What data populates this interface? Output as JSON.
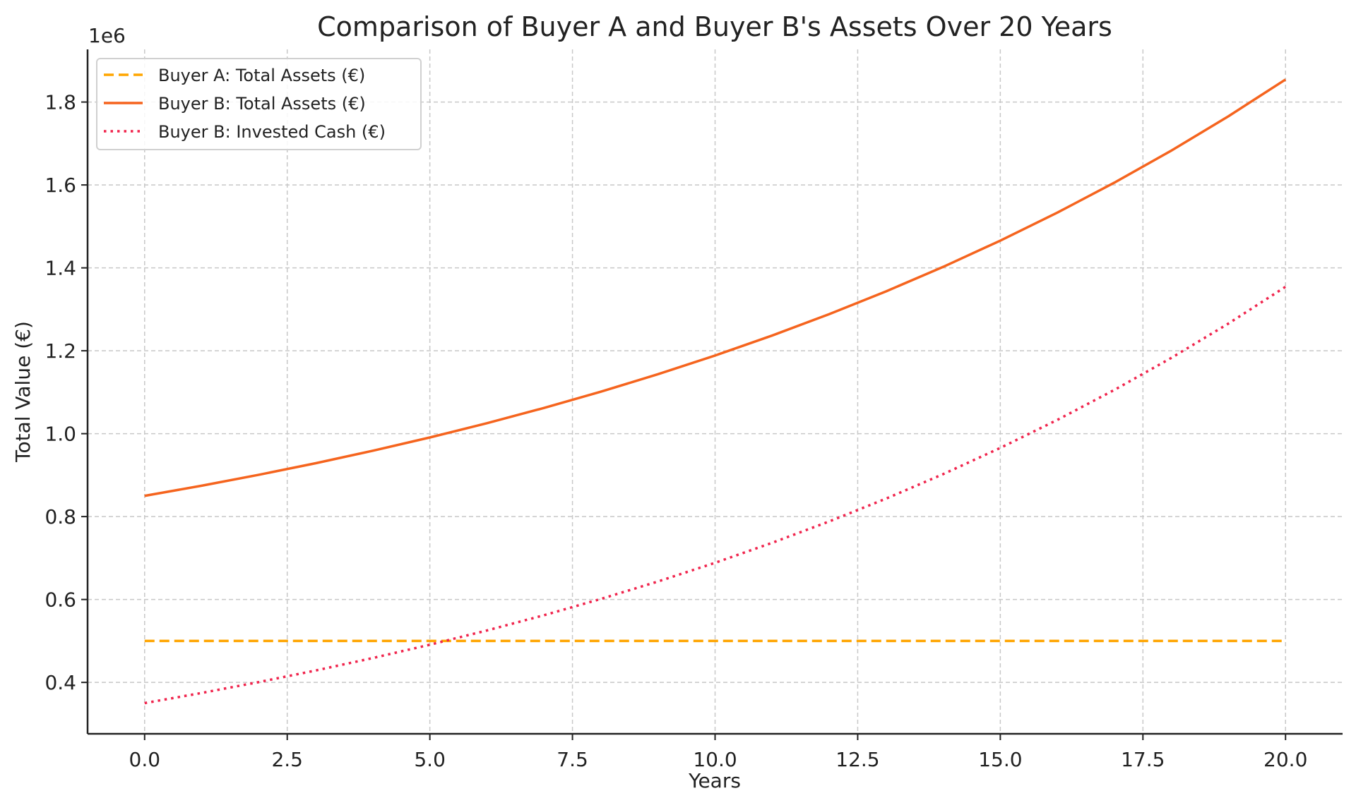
{
  "chart_data": {
    "type": "line",
    "title": "Comparison of Buyer A and Buyer B's Assets Over 20 Years",
    "xlabel": "Years",
    "ylabel": "Total Value (€)",
    "y_offset_label": "1e6",
    "xlim": [
      -1,
      21
    ],
    "ylim": [
      276000,
      1927000
    ],
    "xticks": [
      0,
      2.5,
      5,
      7.5,
      10,
      12.5,
      15,
      17.5,
      20
    ],
    "xtick_labels": [
      "0.0",
      "2.5",
      "5.0",
      "7.5",
      "10.0",
      "12.5",
      "15.0",
      "17.5",
      "20.0"
    ],
    "yticks": [
      400000,
      600000,
      800000,
      1000000,
      1200000,
      1400000,
      1600000,
      1800000
    ],
    "ytick_labels": [
      "0.4",
      "0.6",
      "0.8",
      "1.0",
      "1.2",
      "1.4",
      "1.6",
      "1.8"
    ],
    "grid": true,
    "legend_placement": "top-left",
    "x": [
      0,
      1,
      2,
      3,
      4,
      5,
      6,
      7,
      8,
      9,
      10,
      11,
      12,
      13,
      14,
      15,
      16,
      17,
      18,
      19,
      20
    ],
    "series": [
      {
        "name": "Buyer A: Total Assets (€)",
        "style": "dashed",
        "color": "#FFA500",
        "values": [
          500000,
          500000,
          500000,
          500000,
          500000,
          500000,
          500000,
          500000,
          500000,
          500000,
          500000,
          500000,
          500000,
          500000,
          500000,
          500000,
          500000,
          500000,
          500000,
          500000,
          500000
        ]
      },
      {
        "name": "Buyer B: Total Assets (€)",
        "style": "solid",
        "color": "#F5641E",
        "values": [
          850000,
          874500,
          900715,
          928765,
          958778,
          990893,
          1025255,
          1062023,
          1101365,
          1143460,
          1188503,
          1236698,
          1288267,
          1343446,
          1402487,
          1465662,
          1533258,
          1605586,
          1682977,
          1765785,
          1854391
        ]
      },
      {
        "name": "Buyer B: Invested Cash (€)",
        "style": "dotted",
        "color": "#F0254D",
        "values": [
          350000,
          374500,
          400715,
          428765,
          458778,
          490893,
          525255,
          562023,
          601365,
          643460,
          688503,
          736698,
          788267,
          843446,
          902487,
          965662,
          1033258,
          1105586,
          1182977,
          1265785,
          1354391
        ]
      }
    ]
  }
}
